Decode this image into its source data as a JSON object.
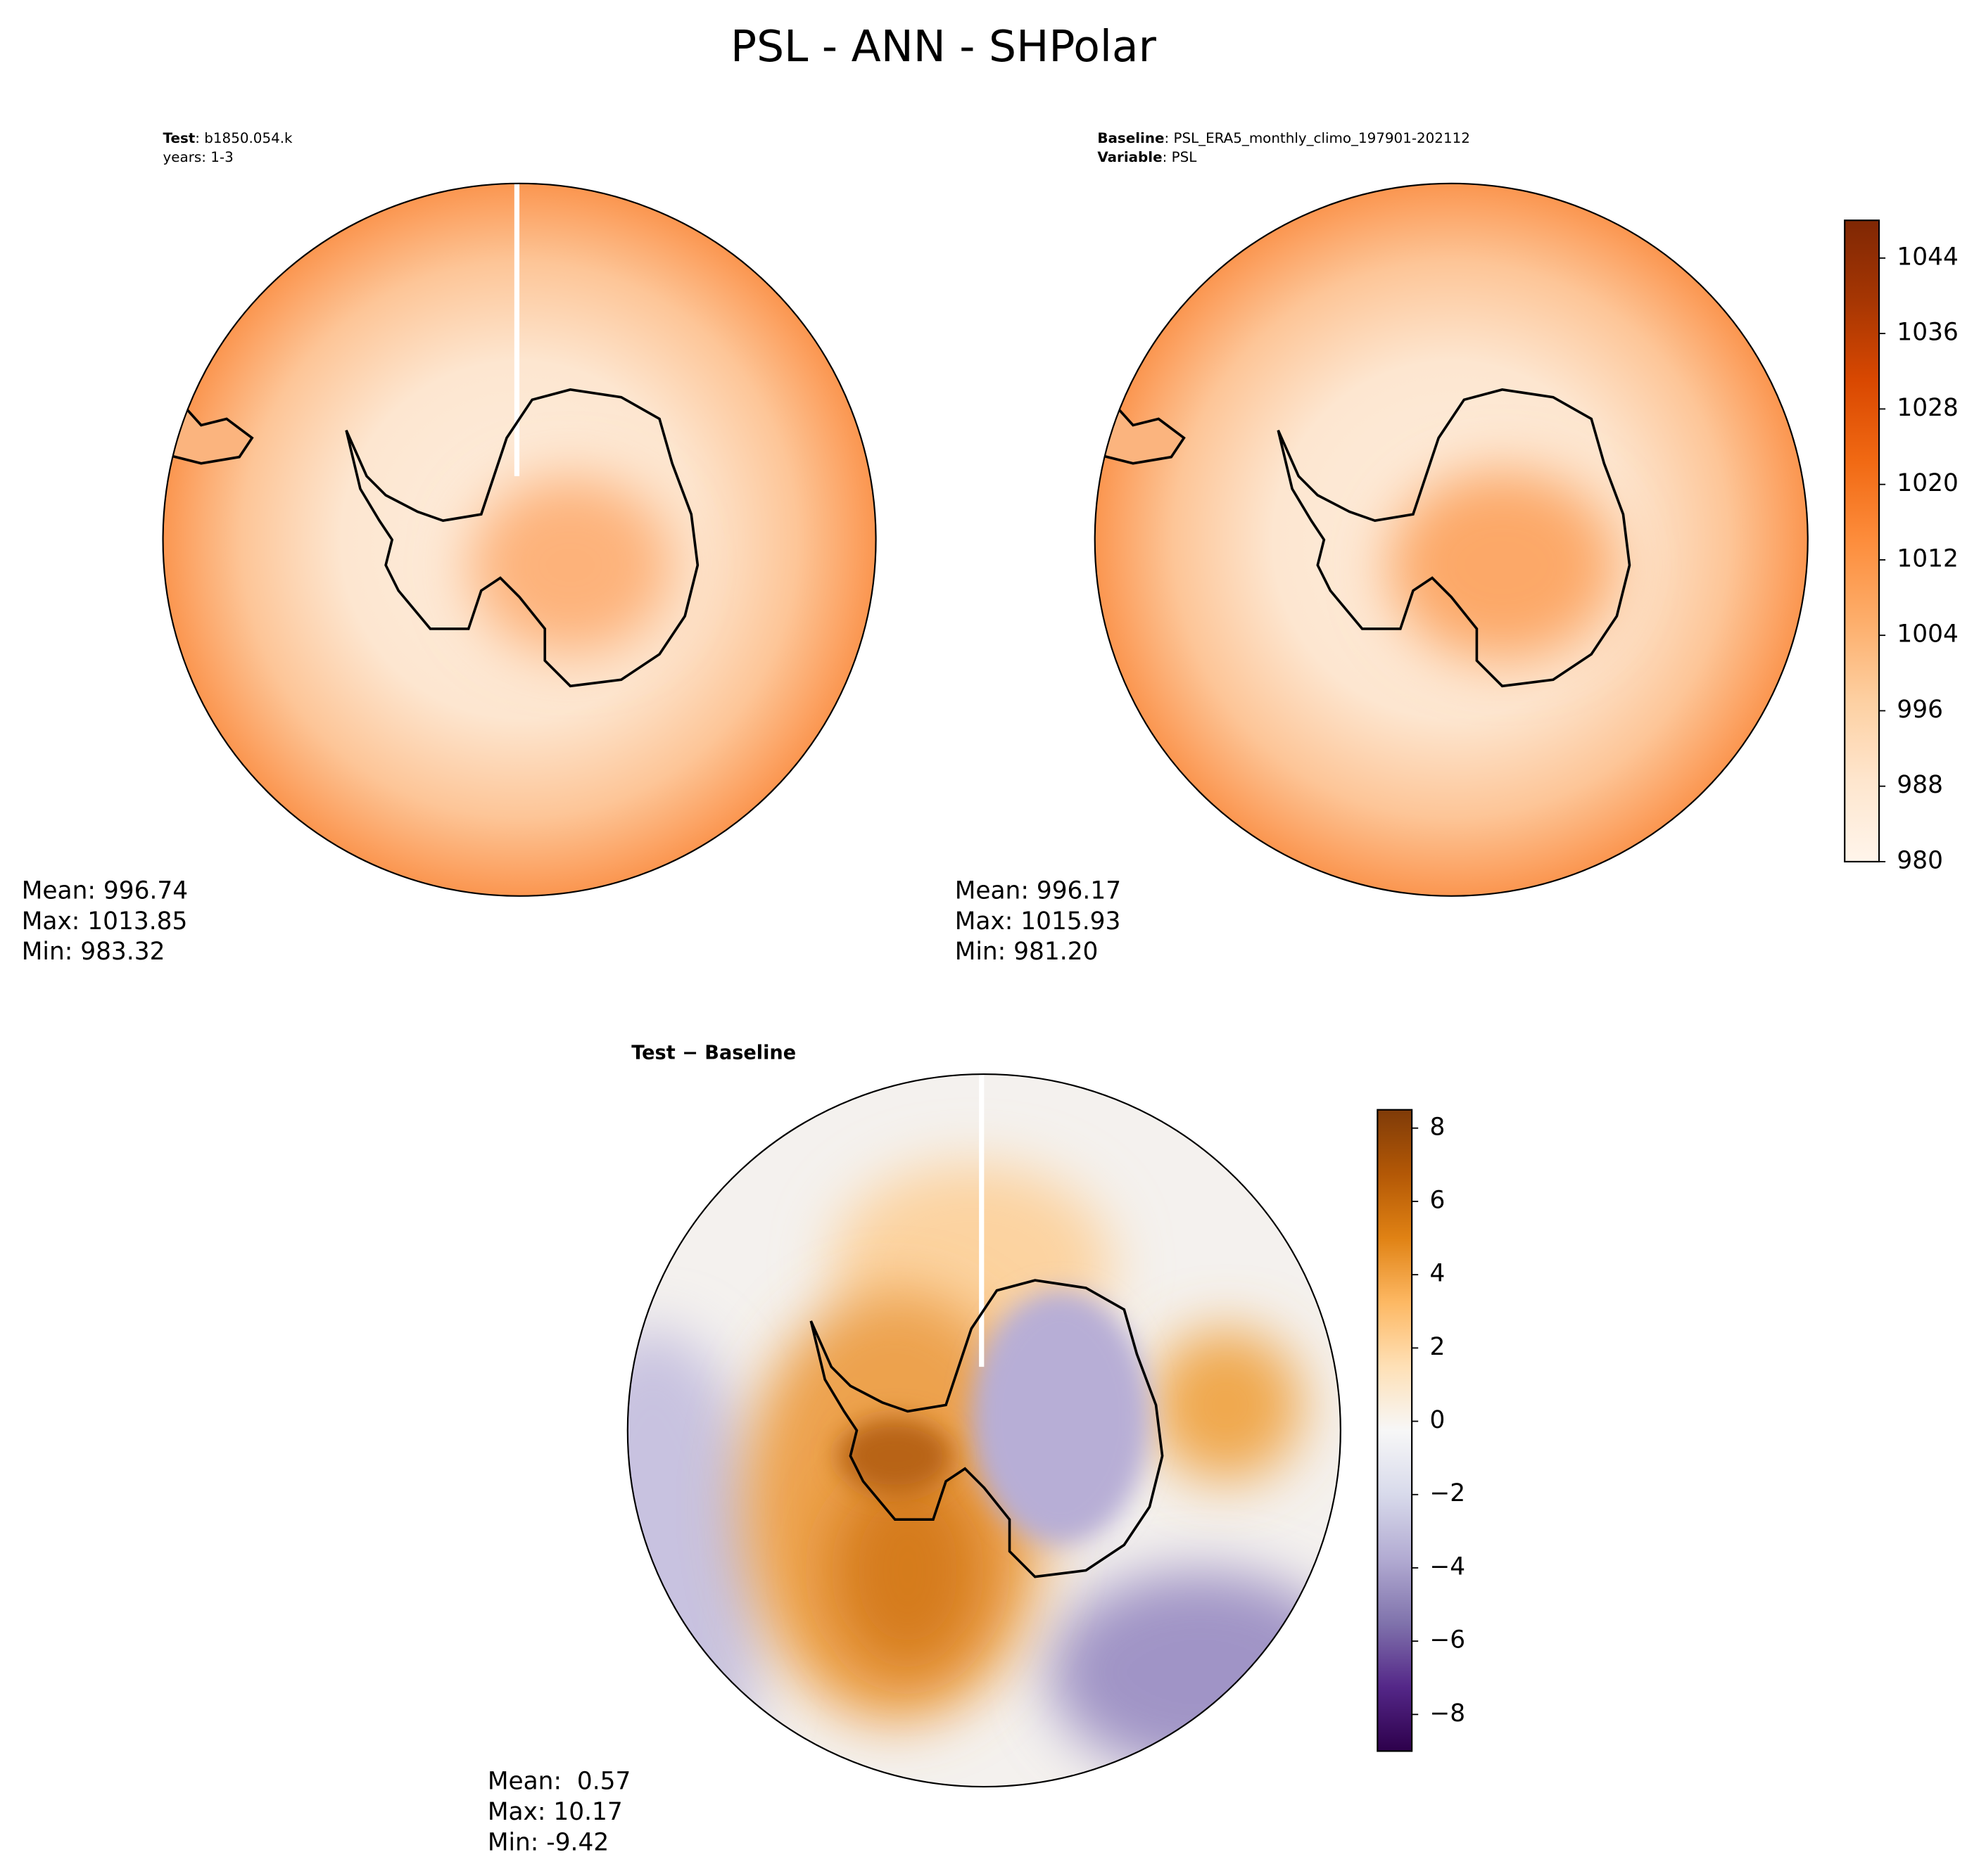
{
  "title": "PSL - ANN - SHPolar",
  "chart_data": [
    {
      "type": "map",
      "header": [
        {
          "label": "Test",
          "value": ": b1850.054.k"
        },
        {
          "value": "years: 1-3"
        }
      ],
      "stats": [
        "Mean: 996.74",
        "Max: 1013.85",
        "Min: 983.32"
      ]
    },
    {
      "type": "map",
      "header": [
        {
          "label": "Baseline",
          "value": ": PSL_ERA5_monthly_climo_197901-202112"
        },
        {
          "label": "Variable",
          "value": ": PSL"
        }
      ],
      "stats": [
        "Mean: 996.17",
        "Max: 1015.93",
        "Min: 981.20"
      ],
      "colors": [
        "#fff5eb",
        "#fee6ce",
        "#fdd0a2",
        "#fdae6b",
        "#fd8d3c",
        "#f16913",
        "#d94801",
        "#a63603",
        "#7f2704"
      ],
      "ylim": [
        980,
        1048
      ],
      "yticks": [
        980,
        988,
        996,
        1004,
        1012,
        1020,
        1028,
        1036,
        1044
      ]
    },
    {
      "type": "map",
      "title": "Test − Baseline",
      "stats": [
        "Mean:  0.57",
        "Max: 10.17",
        "Min: -9.42"
      ],
      "colors": [
        "#2d004b",
        "#542788",
        "#8073ac",
        "#b2abd2",
        "#d8daeb",
        "#f7f7f7",
        "#fee0b6",
        "#fdb863",
        "#e08214",
        "#b35806",
        "#7f3b08"
      ],
      "ylim": [
        -9,
        8.5
      ],
      "yticks": [
        {
          "value": -8,
          "label": "−8"
        },
        {
          "value": -6,
          "label": "−6"
        },
        {
          "value": -4,
          "label": "−4"
        },
        {
          "value": -2,
          "label": "−2"
        },
        0,
        2,
        4,
        6,
        8
      ]
    }
  ]
}
